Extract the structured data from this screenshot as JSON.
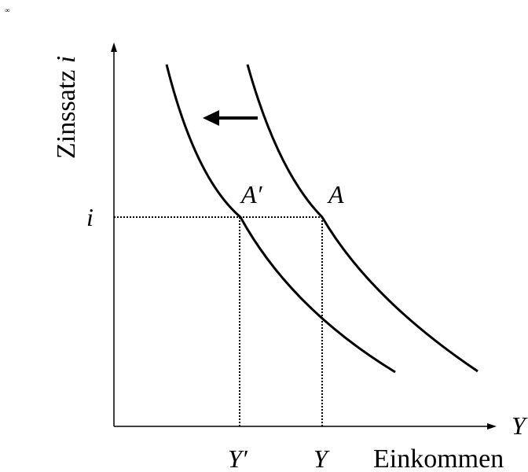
{
  "corner_mark": "∞",
  "axes": {
    "y_title_text": "Zinssatz ",
    "y_title_var": "i",
    "x_end_label": "Y",
    "x_title": "Einkommen"
  },
  "labels": {
    "i_tick": "i",
    "y_prime_tick": "Y′",
    "y_tick": "Y",
    "point_a_prime": "A′",
    "point_a": "A"
  },
  "shift_direction": "left",
  "colors": {
    "line": "#000000",
    "background": "#ffffff"
  }
}
